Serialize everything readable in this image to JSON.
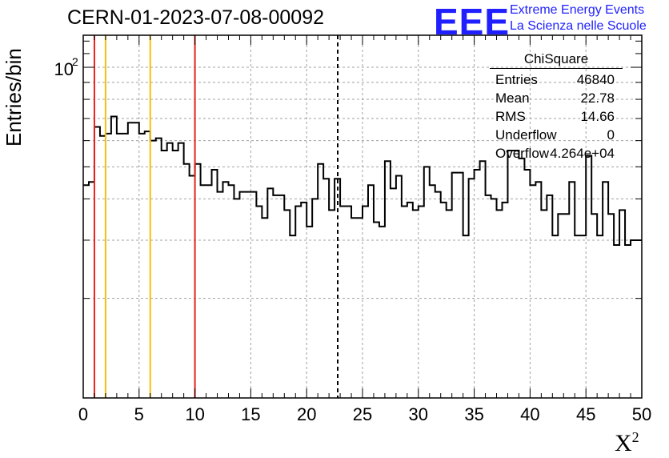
{
  "title": "CERN-01-2023-07-08-00092",
  "logo": {
    "mark": "EEE",
    "line1": "Extreme Energy Events",
    "line2": "La Scienza nelle Scuole",
    "color": "#1f1fff"
  },
  "stats": {
    "header": "ChiSquare",
    "rows": [
      {
        "key": "Entries",
        "value": "46840"
      },
      {
        "key": "Mean",
        "value": "22.78"
      },
      {
        "key": "RMS",
        "value": "14.66"
      },
      {
        "key": "Underflow",
        "value": "0"
      },
      {
        "key": "Overflow",
        "value": "4.264e+04"
      }
    ]
  },
  "chart_data": {
    "type": "histogram",
    "title": "CERN-01-2023-07-08-00092",
    "xlabel": "X",
    "xlabel_sup": "2",
    "ylabel": "Entries/bin",
    "xlim": [
      0,
      50
    ],
    "ylim": [
      10,
      125
    ],
    "log_y": true,
    "grid": true,
    "x_ticks": [
      "0",
      "5",
      "10",
      "15",
      "20",
      "25",
      "30",
      "35",
      "40",
      "45",
      "50"
    ],
    "y_tick_label": "10",
    "y_tick_label_sup": "2",
    "y_tick_value": 100,
    "bin_width": 0.5,
    "values": [
      44,
      45,
      66,
      62,
      63,
      71,
      63,
      63,
      68,
      68,
      63,
      64,
      60,
      61,
      56,
      59,
      56,
      59,
      51,
      47,
      51,
      44,
      44,
      49,
      42,
      45,
      44,
      40,
      42,
      42,
      42,
      38,
      35,
      43,
      41,
      41,
      37,
      31,
      38,
      39,
      33,
      40,
      51,
      46,
      37,
      46,
      38,
      38,
      35,
      35,
      38,
      44,
      34,
      33,
      52,
      43,
      47,
      38,
      39,
      37,
      38,
      50,
      44,
      42,
      39,
      37,
      48,
      48,
      31,
      46,
      49,
      52,
      41,
      40,
      37,
      39,
      56,
      56,
      53,
      49,
      44,
      45,
      37,
      41,
      31,
      36,
      36,
      45,
      31,
      31,
      54,
      36,
      31,
      45,
      36,
      29,
      37,
      29,
      30,
      30
    ],
    "vlines": [
      {
        "x": 1,
        "color": "#e8221c",
        "style": "solid"
      },
      {
        "x": 2,
        "color": "#f2c20f",
        "style": "solid"
      },
      {
        "x": 6,
        "color": "#f2c20f",
        "style": "solid"
      },
      {
        "x": 10,
        "color": "#e8221c",
        "style": "solid"
      },
      {
        "x": 22.78,
        "color": "#000000",
        "style": "dashed"
      }
    ]
  }
}
